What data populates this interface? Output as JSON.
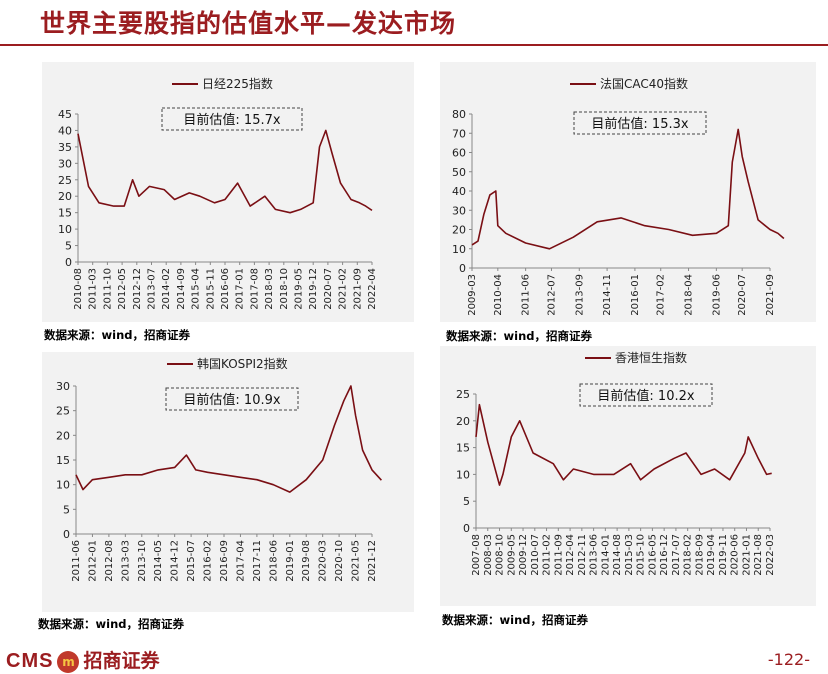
{
  "header": {
    "title": "世界主要股指的估值水平—发达市场"
  },
  "footer": {
    "logo_text": "CMS",
    "logo_badge": "m",
    "logo_cn": "招商证券",
    "page": "-122-"
  },
  "colors": {
    "accent": "#9b1d20",
    "series": "#7a0f14"
  },
  "chart_data": [
    {
      "type": "line",
      "legend": "日经225指数",
      "annotation": "目前估值:  15.7x",
      "ylim": [
        0,
        45
      ],
      "yticks": [
        0,
        5,
        10,
        15,
        20,
        25,
        30,
        35,
        40,
        45
      ],
      "xticks": [
        "2010-08",
        "2011-03",
        "2011-10",
        "2012-05",
        "2012-12",
        "2013-07",
        "2014-02",
        "2014-09",
        "2015-04",
        "2015-11",
        "2016-06",
        "2017-01",
        "2017-08",
        "2018-03",
        "2018-10",
        "2019-05",
        "2019-12",
        "2020-07",
        "2021-02",
        "2021-09",
        "2022-04"
      ],
      "x": [
        "2010-08",
        "2011-01",
        "2011-06",
        "2012-01",
        "2012-06",
        "2012-10",
        "2013-01",
        "2013-06",
        "2014-01",
        "2014-06",
        "2015-01",
        "2015-06",
        "2016-01",
        "2016-06",
        "2016-12",
        "2017-06",
        "2018-01",
        "2018-06",
        "2019-01",
        "2019-06",
        "2019-12",
        "2020-03",
        "2020-06",
        "2020-09",
        "2021-01",
        "2021-06",
        "2021-10",
        "2022-01",
        "2022-04"
      ],
      "values": [
        39,
        23,
        18,
        17,
        17,
        25,
        20,
        23,
        22,
        19,
        21,
        20,
        18,
        19,
        24,
        17,
        20,
        16,
        15,
        16,
        18,
        35,
        40,
        33,
        24,
        19,
        18,
        17,
        15.7
      ],
      "source": "数据来源：wind，招商证券"
    },
    {
      "type": "line",
      "legend": "法国CAC40指数",
      "annotation": "目前估值:  15.3x",
      "ylim": [
        0,
        80
      ],
      "yticks": [
        0,
        10,
        20,
        30,
        40,
        50,
        60,
        70,
        80
      ],
      "xticks": [
        "2009-03",
        "2010-04",
        "2011-06",
        "2012-07",
        "2013-09",
        "2014-11",
        "2016-01",
        "2017-02",
        "2018-04",
        "2019-06",
        "2020-07",
        "2021-09"
      ],
      "x": [
        "2009-03",
        "2009-06",
        "2009-09",
        "2009-12",
        "2010-03",
        "2010-04",
        "2010-08",
        "2011-06",
        "2012-06",
        "2013-06",
        "2014-06",
        "2015-06",
        "2016-06",
        "2017-06",
        "2018-06",
        "2019-06",
        "2019-12",
        "2020-02",
        "2020-05",
        "2020-07",
        "2020-10",
        "2021-03",
        "2021-09",
        "2022-01",
        "2022-04"
      ],
      "values": [
        12,
        14,
        28,
        38,
        40,
        22,
        18,
        13,
        10,
        16,
        24,
        26,
        22,
        20,
        17,
        18,
        22,
        55,
        72,
        58,
        45,
        25,
        20,
        18,
        15.3
      ],
      "source": "数据来源：wind，招商证券"
    },
    {
      "type": "line",
      "legend": "韩国KOSPI2指数",
      "annotation": "目前估值:  10.9x",
      "ylim": [
        0,
        30
      ],
      "yticks": [
        0,
        5,
        10,
        15,
        20,
        25,
        30
      ],
      "xticks": [
        "2011-06",
        "2012-01",
        "2012-08",
        "2013-03",
        "2013-10",
        "2014-05",
        "2014-12",
        "2015-07",
        "2016-02",
        "2016-09",
        "2017-04",
        "2017-11",
        "2018-06",
        "2019-01",
        "2019-08",
        "2020-03",
        "2020-10",
        "2021-05",
        "2021-12"
      ],
      "x": [
        "2011-06",
        "2011-09",
        "2012-01",
        "2012-08",
        "2013-03",
        "2013-10",
        "2014-05",
        "2014-12",
        "2015-05",
        "2015-09",
        "2016-02",
        "2016-09",
        "2017-04",
        "2017-11",
        "2018-06",
        "2019-01",
        "2019-08",
        "2020-03",
        "2020-08",
        "2020-12",
        "2021-03",
        "2021-05",
        "2021-08",
        "2021-12",
        "2022-04"
      ],
      "values": [
        12,
        9,
        11,
        11.5,
        12,
        12,
        13,
        13.5,
        16,
        13,
        12.5,
        12,
        11.5,
        11,
        10,
        8.5,
        11,
        15,
        22,
        27,
        30,
        24,
        17,
        13,
        10.9
      ],
      "source": "数据来源：wind，招商证券"
    },
    {
      "type": "line",
      "legend": "香港恒生指数",
      "annotation": "目前估值:  10.2x",
      "ylim": [
        0,
        25
      ],
      "yticks": [
        0,
        5,
        10,
        15,
        20,
        25
      ],
      "xticks": [
        "2007-08",
        "2008-03",
        "2008-10",
        "2009-05",
        "2009-12",
        "2010-07",
        "2011-02",
        "2011-09",
        "2012-04",
        "2012-11",
        "2013-06",
        "2014-01",
        "2014-08",
        "2015-03",
        "2015-10",
        "2016-05",
        "2016-12",
        "2017-07",
        "2018-02",
        "2018-09",
        "2019-04",
        "2019-11",
        "2020-06",
        "2021-01",
        "2021-08",
        "2022-03"
      ],
      "x": [
        "2007-08",
        "2007-10",
        "2008-03",
        "2008-10",
        "2008-12",
        "2009-05",
        "2009-10",
        "2010-06",
        "2011-06",
        "2011-12",
        "2012-06",
        "2013-06",
        "2014-06",
        "2015-04",
        "2015-10",
        "2016-06",
        "2017-06",
        "2018-01",
        "2018-10",
        "2019-06",
        "2020-03",
        "2020-12",
        "2021-02",
        "2021-08",
        "2022-01",
        "2022-04"
      ],
      "values": [
        17,
        23,
        16,
        8,
        10,
        17,
        20,
        14,
        12,
        9,
        11,
        10,
        10,
        12,
        9,
        11,
        13,
        14,
        10,
        11,
        9,
        14,
        17,
        13,
        10,
        10.2
      ],
      "source": "数据来源：wind，招商证券"
    }
  ]
}
